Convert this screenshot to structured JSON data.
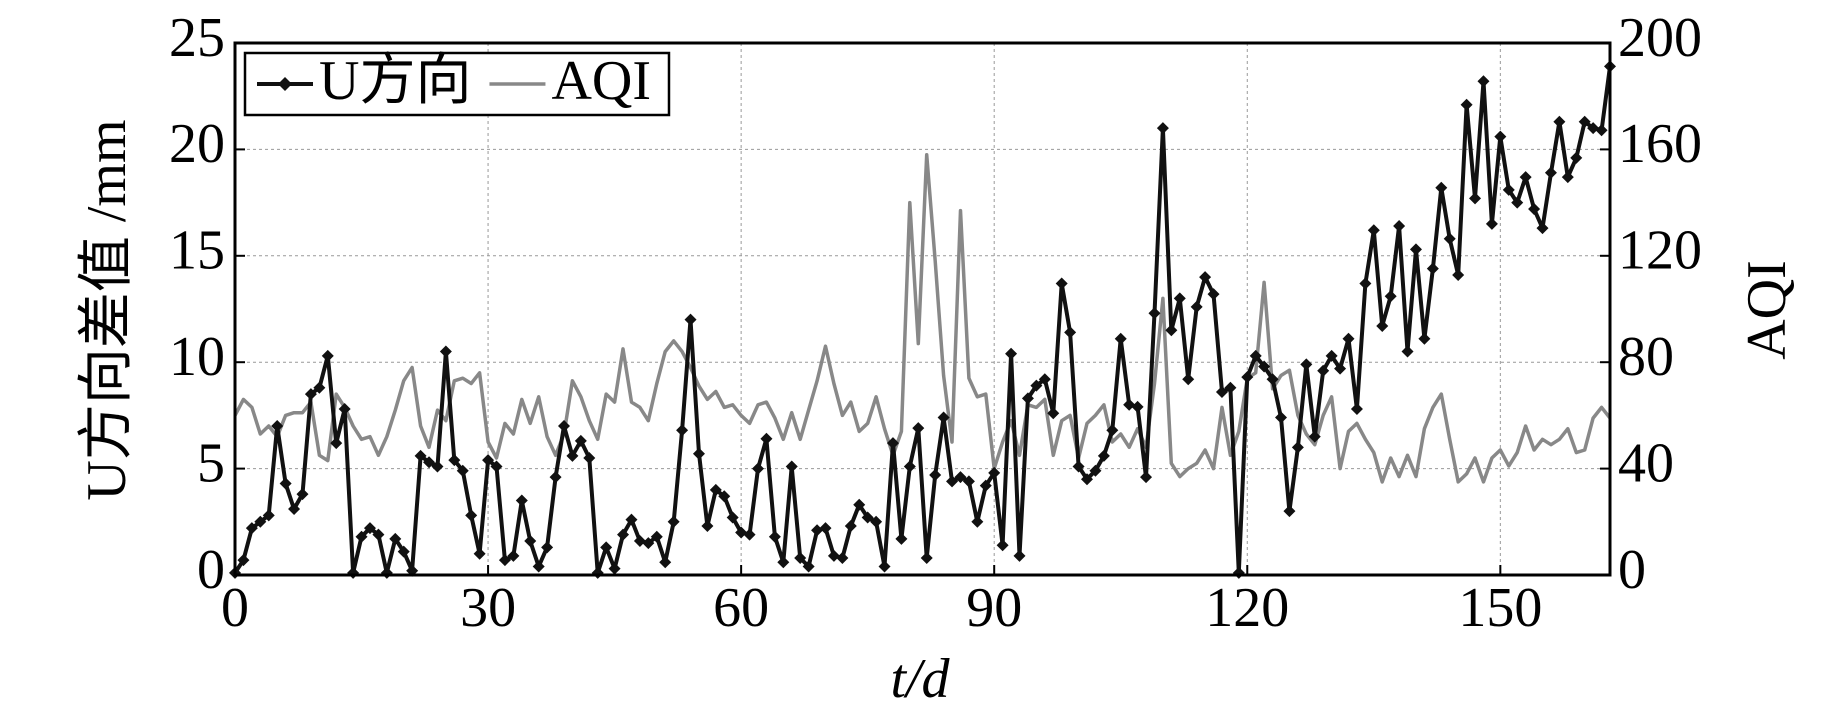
{
  "chart_data": {
    "type": "line",
    "xlabel": "t/d",
    "ylabel": "U方向差值 /mm",
    "y2label": "AQI",
    "xlim": [
      0,
      163
    ],
    "xticks": [
      0,
      30,
      60,
      90,
      120,
      150
    ],
    "ylim": [
      0,
      25
    ],
    "yticks": [
      0,
      5,
      10,
      15,
      20,
      25
    ],
    "y2lim": [
      0,
      200
    ],
    "y2ticks": [
      0,
      40,
      80,
      120,
      160,
      200
    ],
    "grid": true,
    "legend": "upper left",
    "x": [
      0,
      1,
      2,
      3,
      4,
      5,
      6,
      7,
      8,
      9,
      10,
      11,
      12,
      13,
      14,
      15,
      16,
      17,
      18,
      19,
      20,
      21,
      22,
      23,
      24,
      25,
      26,
      27,
      28,
      29,
      30,
      31,
      32,
      33,
      34,
      35,
      36,
      37,
      38,
      39,
      40,
      41,
      42,
      43,
      44,
      45,
      46,
      47,
      48,
      49,
      50,
      51,
      52,
      53,
      54,
      55,
      56,
      57,
      58,
      59,
      60,
      61,
      62,
      63,
      64,
      65,
      66,
      67,
      68,
      69,
      70,
      71,
      72,
      73,
      74,
      75,
      76,
      77,
      78,
      79,
      80,
      81,
      82,
      83,
      84,
      85,
      86,
      87,
      88,
      89,
      90,
      91,
      92,
      93,
      94,
      95,
      96,
      97,
      98,
      99,
      100,
      101,
      102,
      103,
      104,
      105,
      106,
      107,
      108,
      109,
      110,
      111,
      112,
      113,
      114,
      115,
      116,
      117,
      118,
      119,
      120,
      121,
      122,
      123,
      124,
      125,
      126,
      127,
      128,
      129,
      130,
      131,
      132,
      133,
      134,
      135,
      136,
      137,
      138,
      139,
      140,
      141,
      142,
      143,
      144,
      145,
      146,
      147,
      148,
      149,
      150,
      151,
      152,
      153,
      154,
      155,
      156,
      157,
      158,
      159,
      160,
      161,
      162,
      163
    ],
    "series": [
      {
        "name": "U方向",
        "color": "#111111",
        "marker": true,
        "values": [
          0.1,
          0.7,
          2.2,
          2.5,
          2.8,
          7.0,
          4.3,
          3.1,
          3.8,
          8.5,
          8.8,
          10.3,
          6.2,
          7.8,
          0.1,
          1.8,
          2.2,
          1.9,
          0.1,
          1.7,
          1.1,
          0.2,
          5.6,
          5.3,
          5.1,
          10.5,
          5.4,
          4.9,
          2.8,
          1.0,
          5.4,
          5.1,
          0.7,
          0.9,
          3.5,
          1.6,
          0.4,
          1.3,
          4.6,
          7.0,
          5.6,
          6.3,
          5.5,
          0.1,
          1.3,
          0.3,
          1.9,
          2.6,
          1.6,
          1.5,
          1.8,
          0.6,
          2.5,
          6.8,
          12.0,
          5.7,
          2.3,
          4.0,
          3.7,
          2.7,
          2.0,
          1.9,
          5.0,
          6.4,
          1.8,
          0.6,
          5.1,
          0.8,
          0.4,
          2.1,
          2.2,
          0.9,
          0.8,
          2.3,
          3.3,
          2.7,
          2.5,
          0.4,
          6.2,
          1.7,
          5.1,
          6.9,
          0.8,
          4.7,
          7.4,
          4.4,
          4.6,
          4.4,
          2.5,
          4.2,
          4.8,
          1.4,
          10.4,
          0.9,
          8.3,
          8.9,
          9.2,
          7.6,
          13.7,
          11.4,
          5.1,
          4.5,
          4.9,
          5.6,
          6.8,
          11.1,
          8.0,
          7.9,
          4.6,
          12.3,
          21.0,
          11.5,
          13.0,
          9.2,
          12.6,
          14.0,
          13.2,
          8.6,
          8.8,
          0.1,
          9.3,
          10.3,
          9.8,
          9.2,
          7.4,
          3.0,
          6.0,
          9.9,
          6.5,
          9.6,
          10.3,
          9.7,
          11.1,
          7.8,
          13.7,
          16.2,
          11.7,
          13.1,
          16.4,
          10.5,
          15.3,
          11.1,
          14.4,
          18.2,
          15.8,
          14.1,
          22.1,
          17.7,
          23.2,
          16.5,
          20.6,
          18.1,
          17.5,
          18.7,
          17.2,
          16.3,
          18.9,
          21.3,
          18.7,
          19.6,
          21.3,
          21.0,
          20.9,
          23.9
        ]
      },
      {
        "name": "AQI",
        "color": "#888888",
        "marker": false,
        "axis": "y2",
        "values": [
          60,
          66,
          63,
          53,
          56,
          52,
          60,
          61,
          61,
          65,
          45,
          43,
          68,
          63,
          56,
          51,
          52,
          45,
          52,
          62,
          73,
          78,
          56,
          48,
          62,
          58,
          73,
          74,
          72,
          76,
          50,
          44,
          57,
          53,
          66,
          57,
          67,
          52,
          45,
          53,
          73,
          67,
          58,
          51,
          68,
          65,
          85,
          65,
          63,
          58,
          72,
          84,
          88,
          84,
          78,
          71,
          66,
          69,
          63,
          64,
          60,
          57,
          64,
          65,
          59,
          51,
          61,
          51,
          62,
          73,
          86,
          72,
          60,
          65,
          54,
          57,
          67,
          55,
          45,
          54,
          140,
          87,
          158,
          118,
          75,
          50,
          137,
          74,
          67,
          68,
          40,
          50,
          58,
          45,
          64,
          63,
          66,
          45,
          58,
          60,
          44,
          57,
          60,
          64,
          50,
          53,
          48,
          55,
          48,
          72,
          104,
          42,
          37,
          40,
          42,
          47,
          40,
          63,
          45,
          54,
          74,
          76,
          110,
          70,
          75,
          77,
          60,
          53,
          49,
          60,
          67,
          40,
          54,
          57,
          51,
          46,
          35,
          44,
          37,
          45,
          37,
          55,
          63,
          68,
          51,
          35,
          38,
          44,
          35,
          44,
          47,
          41,
          46,
          56,
          47,
          51,
          49,
          51,
          55,
          46,
          47,
          59,
          63,
          59
        ]
      }
    ]
  }
}
